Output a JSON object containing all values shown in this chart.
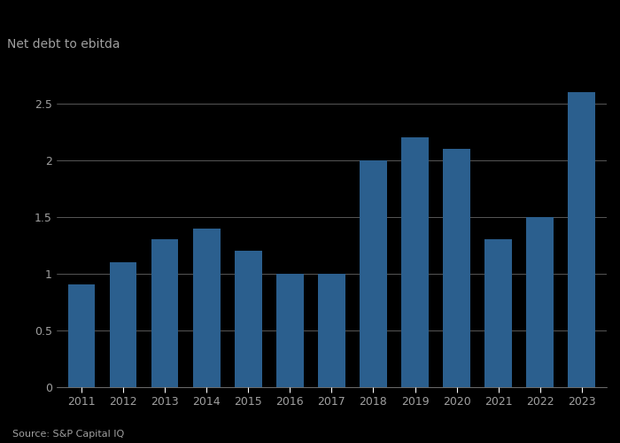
{
  "years": [
    2011,
    2012,
    2013,
    2014,
    2015,
    2016,
    2017,
    2018,
    2019,
    2020,
    2021,
    2022,
    2023
  ],
  "values": [
    0.9,
    1.1,
    1.3,
    1.4,
    1.2,
    1.0,
    1.0,
    2.0,
    2.2,
    2.1,
    1.3,
    1.5,
    2.6
  ],
  "bar_color": "#2b5f8e",
  "background_color": "#000000",
  "text_color": "#a0a0a0",
  "ylabel": "Net debt to ebitda",
  "source": "Source: S&P Capital IQ",
  "ylim": [
    0,
    2.8
  ],
  "yticks": [
    0,
    0.5,
    1.0,
    1.5,
    2.0,
    2.5
  ],
  "grid_color": "#ffffff",
  "bar_width": 0.65
}
